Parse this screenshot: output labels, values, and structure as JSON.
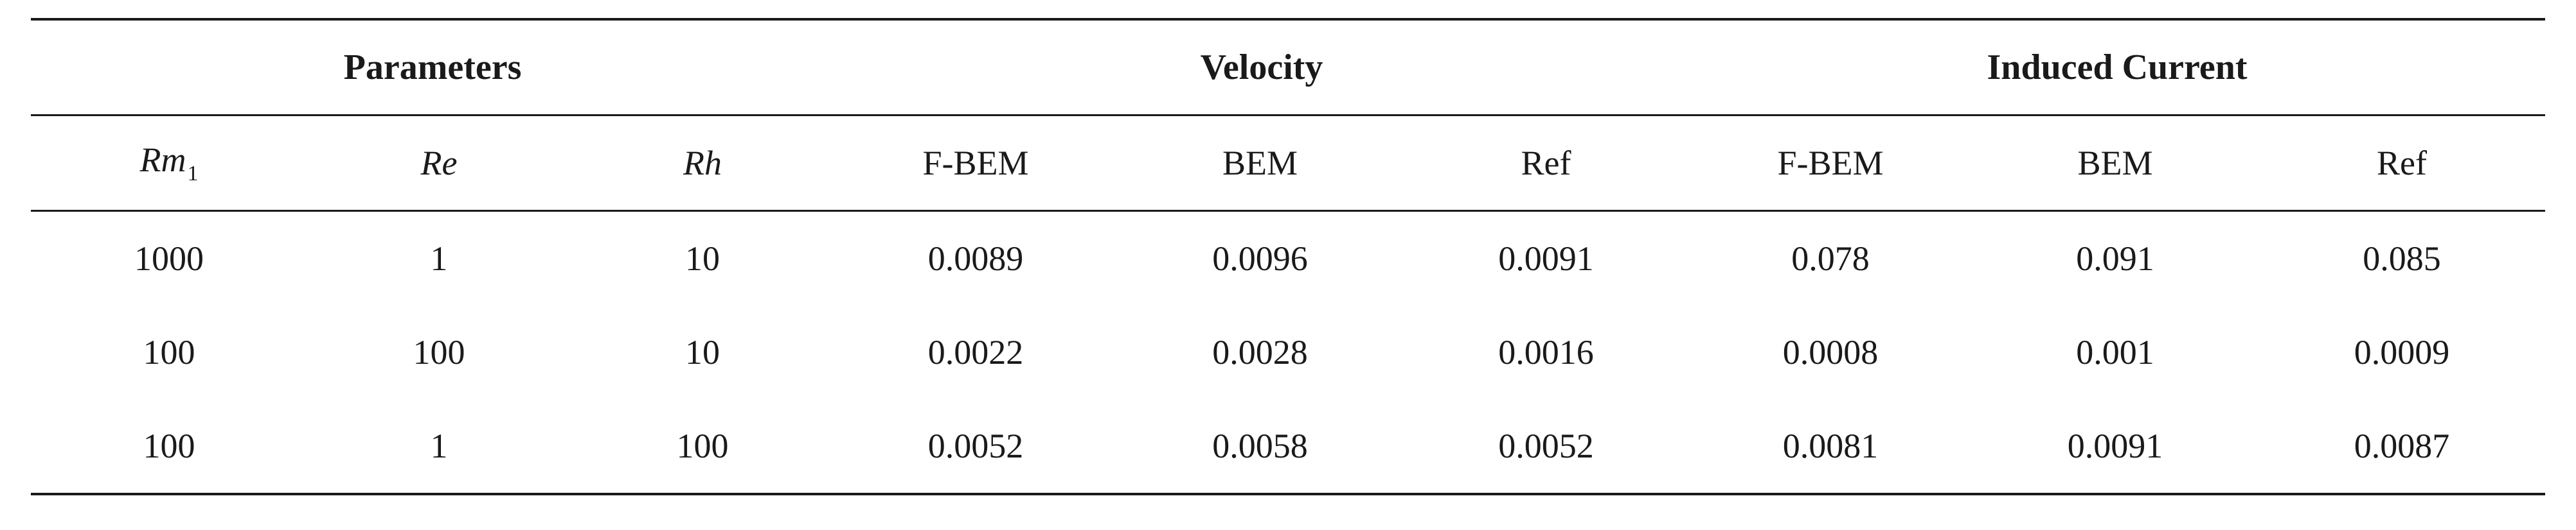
{
  "table": {
    "group_headers": {
      "parameters": "Parameters",
      "velocity": "Velocity",
      "induced_current": "Induced Current"
    },
    "sub_headers": {
      "rm_base": "Rm",
      "rm_sub": "1",
      "re": "Re",
      "rh": "Rh",
      "velocity_fbem": "F-BEM",
      "velocity_bem": "BEM",
      "velocity_ref": "Ref",
      "current_fbem": "F-BEM",
      "current_bem": "BEM",
      "current_ref": "Ref"
    },
    "rows": [
      [
        "1000",
        "1",
        "10",
        "0.0089",
        "0.0096",
        "0.0091",
        "0.078",
        "0.091",
        "0.085"
      ],
      [
        "100",
        "100",
        "10",
        "0.0022",
        "0.0028",
        "0.0016",
        "0.0008",
        "0.001",
        "0.0009"
      ],
      [
        "100",
        "1",
        "100",
        "0.0052",
        "0.0058",
        "0.0052",
        "0.0081",
        "0.0091",
        "0.0087"
      ]
    ]
  }
}
